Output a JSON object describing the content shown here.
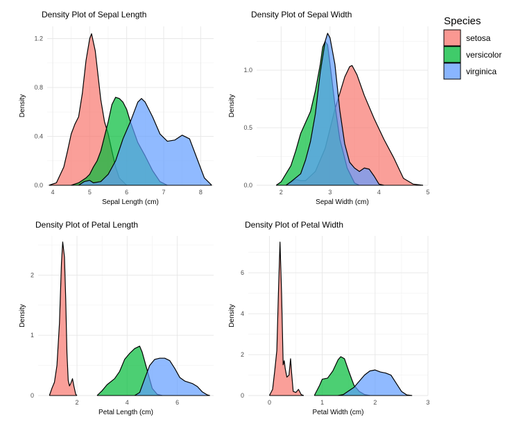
{
  "legend": {
    "title": "Species",
    "items": [
      {
        "label": "setosa",
        "color": "#f8766d"
      },
      {
        "label": "versicolor",
        "color": "#00ba38"
      },
      {
        "label": "virginica",
        "color": "#619cff"
      }
    ]
  },
  "chart_data": [
    {
      "type": "area",
      "title": "Density Plot of Sepal Length",
      "xlabel": "Sepal Length (cm)",
      "ylabel": "Density",
      "xlim": [
        3.85,
        8.35
      ],
      "ylim": [
        0,
        1.3
      ],
      "xticks": [
        4,
        5,
        6,
        7,
        8
      ],
      "yticks": [
        0.0,
        0.4,
        0.8,
        1.2
      ],
      "ytick_labels": [
        "0.0",
        "0.4",
        "0.8",
        "1.2"
      ],
      "series": [
        {
          "name": "setosa",
          "color": "#f8766d",
          "points": [
            [
              3.9,
              0
            ],
            [
              4.1,
              0.02
            ],
            [
              4.3,
              0.15
            ],
            [
              4.4,
              0.28
            ],
            [
              4.5,
              0.42
            ],
            [
              4.6,
              0.5
            ],
            [
              4.7,
              0.56
            ],
            [
              4.8,
              0.75
            ],
            [
              4.9,
              1.02
            ],
            [
              5.0,
              1.2
            ],
            [
              5.05,
              1.24
            ],
            [
              5.15,
              1.1
            ],
            [
              5.3,
              0.7
            ],
            [
              5.4,
              0.52
            ],
            [
              5.5,
              0.42
            ],
            [
              5.6,
              0.28
            ],
            [
              5.7,
              0.15
            ],
            [
              5.8,
              0.06
            ],
            [
              6.0,
              0
            ]
          ]
        },
        {
          "name": "versicolor",
          "color": "#00ba38",
          "points": [
            [
              4.5,
              0
            ],
            [
              4.7,
              0.02
            ],
            [
              4.9,
              0.06
            ],
            [
              5.0,
              0.09
            ],
            [
              5.1,
              0.15
            ],
            [
              5.2,
              0.2
            ],
            [
              5.3,
              0.28
            ],
            [
              5.5,
              0.52
            ],
            [
              5.6,
              0.66
            ],
            [
              5.7,
              0.72
            ],
            [
              5.8,
              0.71
            ],
            [
              5.9,
              0.68
            ],
            [
              6.0,
              0.62
            ],
            [
              6.1,
              0.52
            ],
            [
              6.3,
              0.35
            ],
            [
              6.5,
              0.24
            ],
            [
              6.7,
              0.12
            ],
            [
              6.9,
              0.03
            ],
            [
              7.1,
              0
            ]
          ]
        },
        {
          "name": "virginica",
          "color": "#619cff",
          "points": [
            [
              4.7,
              0
            ],
            [
              4.85,
              0.03
            ],
            [
              5.0,
              0.04
            ],
            [
              5.1,
              0.02
            ],
            [
              5.3,
              0.03
            ],
            [
              5.5,
              0.09
            ],
            [
              5.7,
              0.2
            ],
            [
              5.9,
              0.38
            ],
            [
              6.1,
              0.52
            ],
            [
              6.3,
              0.68
            ],
            [
              6.4,
              0.71
            ],
            [
              6.5,
              0.68
            ],
            [
              6.7,
              0.56
            ],
            [
              6.9,
              0.42
            ],
            [
              7.1,
              0.36
            ],
            [
              7.3,
              0.37
            ],
            [
              7.5,
              0.41
            ],
            [
              7.7,
              0.38
            ],
            [
              7.9,
              0.22
            ],
            [
              8.1,
              0.06
            ],
            [
              8.3,
              0
            ]
          ]
        }
      ]
    },
    {
      "type": "area",
      "title": "Density Plot of Sepal Width",
      "xlabel": "Sepal Width (cm)",
      "ylabel": "Density",
      "xlim": [
        1.5,
        5.0
      ],
      "ylim": [
        0,
        1.38
      ],
      "xticks": [
        2,
        3,
        4,
        5
      ],
      "yticks": [
        0.0,
        0.5,
        1.0
      ],
      "ytick_labels": [
        "0.0",
        "0.5",
        "1.0"
      ],
      "series": [
        {
          "name": "setosa",
          "color": "#f8766d",
          "points": [
            [
              2.1,
              0
            ],
            [
              2.3,
              0.05
            ],
            [
              2.4,
              0.04
            ],
            [
              2.5,
              0.04
            ],
            [
              2.7,
              0.12
            ],
            [
              2.9,
              0.32
            ],
            [
              3.1,
              0.66
            ],
            [
              3.3,
              0.94
            ],
            [
              3.4,
              1.03
            ],
            [
              3.45,
              1.04
            ],
            [
              3.55,
              0.96
            ],
            [
              3.7,
              0.78
            ],
            [
              3.9,
              0.58
            ],
            [
              4.1,
              0.4
            ],
            [
              4.3,
              0.24
            ],
            [
              4.5,
              0.06
            ],
            [
              4.7,
              0.01
            ],
            [
              4.9,
              0
            ]
          ]
        },
        {
          "name": "versicolor",
          "color": "#00ba38",
          "points": [
            [
              1.9,
              0
            ],
            [
              2.0,
              0.03
            ],
            [
              2.2,
              0.17
            ],
            [
              2.3,
              0.3
            ],
            [
              2.4,
              0.45
            ],
            [
              2.6,
              0.64
            ],
            [
              2.7,
              0.82
            ],
            [
              2.8,
              1.05
            ],
            [
              2.85,
              1.2
            ],
            [
              2.9,
              1.25
            ],
            [
              2.95,
              1.22
            ],
            [
              3.0,
              1.05
            ],
            [
              3.1,
              0.7
            ],
            [
              3.2,
              0.4
            ],
            [
              3.35,
              0.15
            ],
            [
              3.5,
              0.02
            ],
            [
              3.6,
              0
            ]
          ]
        },
        {
          "name": "virginica",
          "color": "#619cff",
          "points": [
            [
              2.1,
              0
            ],
            [
              2.2,
              0.03
            ],
            [
              2.4,
              0.1
            ],
            [
              2.5,
              0.22
            ],
            [
              2.6,
              0.38
            ],
            [
              2.7,
              0.62
            ],
            [
              2.8,
              0.98
            ],
            [
              2.9,
              1.25
            ],
            [
              2.95,
              1.32
            ],
            [
              3.0,
              1.28
            ],
            [
              3.1,
              1.05
            ],
            [
              3.2,
              0.65
            ],
            [
              3.3,
              0.36
            ],
            [
              3.4,
              0.2
            ],
            [
              3.5,
              0.15
            ],
            [
              3.6,
              0.12
            ],
            [
              3.7,
              0.15
            ],
            [
              3.8,
              0.14
            ],
            [
              3.9,
              0.08
            ],
            [
              4.0,
              0.01
            ],
            [
              4.1,
              0
            ]
          ]
        }
      ]
    },
    {
      "type": "area",
      "title": "Density Plot of Petal Length",
      "xlabel": "Petal Length (cm)",
      "ylabel": "Density",
      "xlim": [
        0.45,
        7.45
      ],
      "ylim": [
        0,
        2.65
      ],
      "xticks": [
        2,
        4,
        6
      ],
      "yticks": [
        0,
        1,
        2
      ],
      "ytick_labels": [
        "0",
        "1",
        "2"
      ],
      "series": [
        {
          "name": "setosa",
          "color": "#f8766d",
          "points": [
            [
              0.9,
              0
            ],
            [
              1.0,
              0.12
            ],
            [
              1.1,
              0.22
            ],
            [
              1.2,
              0.5
            ],
            [
              1.3,
              1.2
            ],
            [
              1.38,
              2.2
            ],
            [
              1.43,
              2.55
            ],
            [
              1.5,
              2.3
            ],
            [
              1.55,
              1.6
            ],
            [
              1.6,
              0.7
            ],
            [
              1.65,
              0.25
            ],
            [
              1.7,
              0.16
            ],
            [
              1.75,
              0.2
            ],
            [
              1.82,
              0.28
            ],
            [
              1.88,
              0.15
            ],
            [
              1.95,
              0.02
            ],
            [
              2.0,
              0
            ]
          ]
        },
        {
          "name": "versicolor",
          "color": "#00ba38",
          "points": [
            [
              2.8,
              0
            ],
            [
              3.0,
              0.08
            ],
            [
              3.2,
              0.18
            ],
            [
              3.5,
              0.28
            ],
            [
              3.7,
              0.4
            ],
            [
              3.9,
              0.6
            ],
            [
              4.1,
              0.7
            ],
            [
              4.3,
              0.78
            ],
            [
              4.5,
              0.82
            ],
            [
              4.6,
              0.72
            ],
            [
              4.8,
              0.42
            ],
            [
              5.0,
              0.12
            ],
            [
              5.2,
              0.02
            ],
            [
              5.4,
              0
            ]
          ]
        },
        {
          "name": "virginica",
          "color": "#619cff",
          "points": [
            [
              4.3,
              0
            ],
            [
              4.5,
              0.05
            ],
            [
              4.7,
              0.28
            ],
            [
              4.9,
              0.5
            ],
            [
              5.1,
              0.6
            ],
            [
              5.3,
              0.62
            ],
            [
              5.5,
              0.62
            ],
            [
              5.7,
              0.58
            ],
            [
              5.9,
              0.45
            ],
            [
              6.1,
              0.3
            ],
            [
              6.3,
              0.24
            ],
            [
              6.6,
              0.2
            ],
            [
              6.8,
              0.15
            ],
            [
              7.0,
              0.06
            ],
            [
              7.2,
              0.01
            ],
            [
              7.3,
              0
            ]
          ]
        }
      ]
    },
    {
      "type": "area",
      "title": "Density Plot of Petal Width",
      "xlabel": "Petal Width (cm)",
      "ylabel": "Density",
      "xlim": [
        -0.4,
        3.0
      ],
      "ylim": [
        0,
        7.8
      ],
      "xticks": [
        0,
        1,
        2,
        3
      ],
      "yticks": [
        0,
        2,
        4,
        6
      ],
      "ytick_labels": [
        "0",
        "2",
        "4",
        "6"
      ],
      "series": [
        {
          "name": "setosa",
          "color": "#f8766d",
          "points": [
            [
              0.0,
              0
            ],
            [
              0.06,
              0.3
            ],
            [
              0.1,
              1.2
            ],
            [
              0.14,
              2.2
            ],
            [
              0.17,
              5.0
            ],
            [
              0.2,
              7.5
            ],
            [
              0.23,
              5.0
            ],
            [
              0.26,
              1.5
            ],
            [
              0.28,
              1.7
            ],
            [
              0.3,
              1.3
            ],
            [
              0.33,
              0.9
            ],
            [
              0.37,
              1.0
            ],
            [
              0.4,
              1.8
            ],
            [
              0.42,
              1.1
            ],
            [
              0.45,
              0.2
            ],
            [
              0.5,
              0.15
            ],
            [
              0.55,
              0.3
            ],
            [
              0.6,
              0.05
            ],
            [
              0.65,
              0
            ]
          ]
        },
        {
          "name": "versicolor",
          "color": "#00ba38",
          "points": [
            [
              0.85,
              0
            ],
            [
              0.95,
              0.5
            ],
            [
              1.0,
              0.8
            ],
            [
              1.1,
              0.85
            ],
            [
              1.2,
              1.2
            ],
            [
              1.3,
              1.75
            ],
            [
              1.35,
              1.9
            ],
            [
              1.42,
              1.8
            ],
            [
              1.5,
              1.2
            ],
            [
              1.6,
              0.5
            ],
            [
              1.7,
              0.2
            ],
            [
              1.8,
              0.05
            ],
            [
              1.9,
              0
            ]
          ]
        },
        {
          "name": "virginica",
          "color": "#619cff",
          "points": [
            [
              1.3,
              0
            ],
            [
              1.4,
              0.05
            ],
            [
              1.6,
              0.4
            ],
            [
              1.8,
              1.0
            ],
            [
              1.9,
              1.2
            ],
            [
              2.0,
              1.25
            ],
            [
              2.1,
              1.15
            ],
            [
              2.2,
              1.1
            ],
            [
              2.3,
              1.0
            ],
            [
              2.4,
              0.6
            ],
            [
              2.5,
              0.2
            ],
            [
              2.6,
              0.03
            ],
            [
              2.7,
              0
            ]
          ]
        }
      ]
    }
  ]
}
